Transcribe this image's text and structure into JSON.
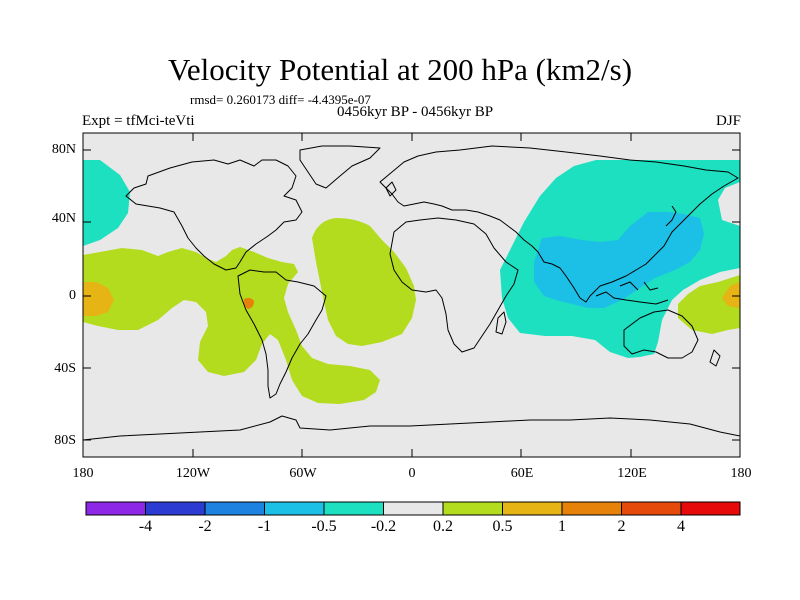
{
  "title": "Velocity Potential at 200 hPa (km2/s)",
  "stats": "rmsd= 0.260173 diff= -4.4395e-07",
  "subtitle": "0456kyr BP - 0456kyr BP",
  "left_label": "Expt = tfMci-teVti",
  "right_label": "DJF",
  "y_tick_labels": [
    "80N",
    "40N",
    "0",
    "40S",
    "80S"
  ],
  "x_tick_labels": [
    "180",
    "120W",
    "60W",
    "0",
    "60E",
    "120E",
    "180"
  ],
  "colorbar": {
    "labels": [
      "-4",
      "-2",
      "-1",
      "-0.5",
      "-0.2",
      "0.2",
      "0.5",
      "1",
      "2",
      "4"
    ],
    "colors": [
      "#8c28e6",
      "#2c3cd2",
      "#1e82e0",
      "#1cc0e6",
      "#1ce0c0",
      "#e8e8e8",
      "#b4dc1e",
      "#e6b414",
      "#e6820a",
      "#e64a0a",
      "#e60a0a"
    ]
  },
  "colors": {
    "background": "#e8e8e8",
    "neg_weak": "#1ce0c0",
    "neg_mid": "#1cc0e6",
    "pos_weak": "#b4dc1e",
    "pos_mid": "#e6b414",
    "pos_strong": "#e6820a"
  }
}
